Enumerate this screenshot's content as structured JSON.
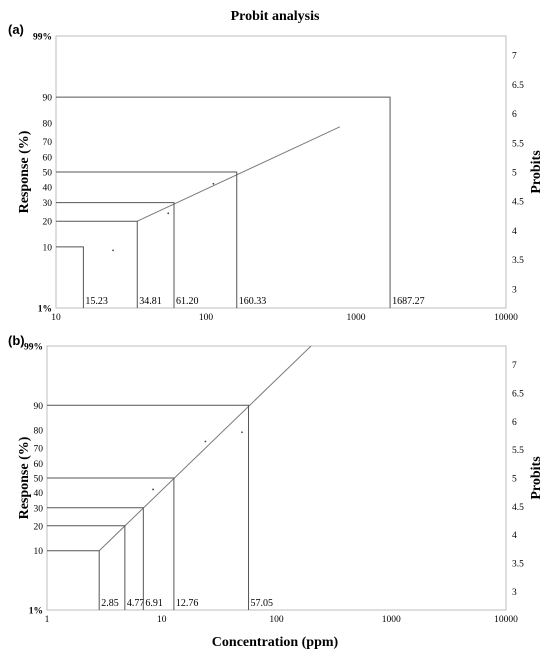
{
  "figure": {
    "title": "Probit analysis",
    "xlabel": "Concentration (ppm)",
    "ylabel": "Response (%)",
    "y2label": "Probits"
  },
  "chart_data": [
    {
      "type": "line",
      "panel_label": "(a)",
      "x_scale": "log",
      "xlim": [
        10,
        10000
      ],
      "x_ticks": [
        "10",
        "100",
        "1000",
        "10000"
      ],
      "y_ticks": [
        "1%",
        "10",
        "20",
        "30",
        "40",
        "50",
        "60",
        "70",
        "80",
        "90",
        "99%"
      ],
      "y2_ticks": [
        "3",
        "3.5",
        "4",
        "4.5",
        "5",
        "5.5",
        "6",
        "6.5",
        "7"
      ],
      "ylabel": "Response (%)",
      "y2label": "Probits",
      "regression_line": [
        {
          "x": 34.81,
          "response": 20
        },
        {
          "x": 780,
          "response": 78
        }
      ],
      "observed_points": [
        {
          "x": 24,
          "response": 9
        },
        {
          "x": 56,
          "response": 24
        },
        {
          "x": 112,
          "response": 42
        }
      ],
      "concentrations": [
        {
          "label": "15.23",
          "x": 15.23,
          "response": 10
        },
        {
          "label": "34.81",
          "x": 34.81,
          "response": 20
        },
        {
          "label": "61.20",
          "x": 61.2,
          "response": 30
        },
        {
          "label": "160.33",
          "x": 160.33,
          "response": 50
        },
        {
          "label": "1687.27",
          "x": 1687.27,
          "response": 90
        }
      ]
    },
    {
      "type": "line",
      "panel_label": "(b)",
      "x_scale": "log",
      "xlim": [
        1,
        10000
      ],
      "x_ticks": [
        "1",
        "10",
        "100",
        "1000",
        "10000"
      ],
      "y_ticks": [
        "1%",
        "10",
        "20",
        "30",
        "40",
        "50",
        "60",
        "70",
        "80",
        "90",
        "99%"
      ],
      "y2_ticks": [
        "3",
        "3.5",
        "4",
        "4.5",
        "5",
        "5.5",
        "6",
        "6.5",
        "7"
      ],
      "ylabel": "Response (%)",
      "y2label": "Probits",
      "regression_line": [
        {
          "x": 2.85,
          "response": 10
        },
        {
          "x": 200,
          "response": 99
        }
      ],
      "observed_points": [
        {
          "x": 8.4,
          "response": 42
        },
        {
          "x": 24,
          "response": 74
        },
        {
          "x": 50,
          "response": 79
        }
      ],
      "concentrations": [
        {
          "label": "2.85",
          "x": 2.85,
          "response": 10
        },
        {
          "label": "4.77",
          "x": 4.77,
          "response": 20
        },
        {
          "label": "6.91",
          "x": 6.91,
          "response": 30
        },
        {
          "label": "12.76",
          "x": 12.76,
          "response": 50
        },
        {
          "label": "57.05",
          "x": 57.05,
          "response": 90
        }
      ]
    }
  ]
}
